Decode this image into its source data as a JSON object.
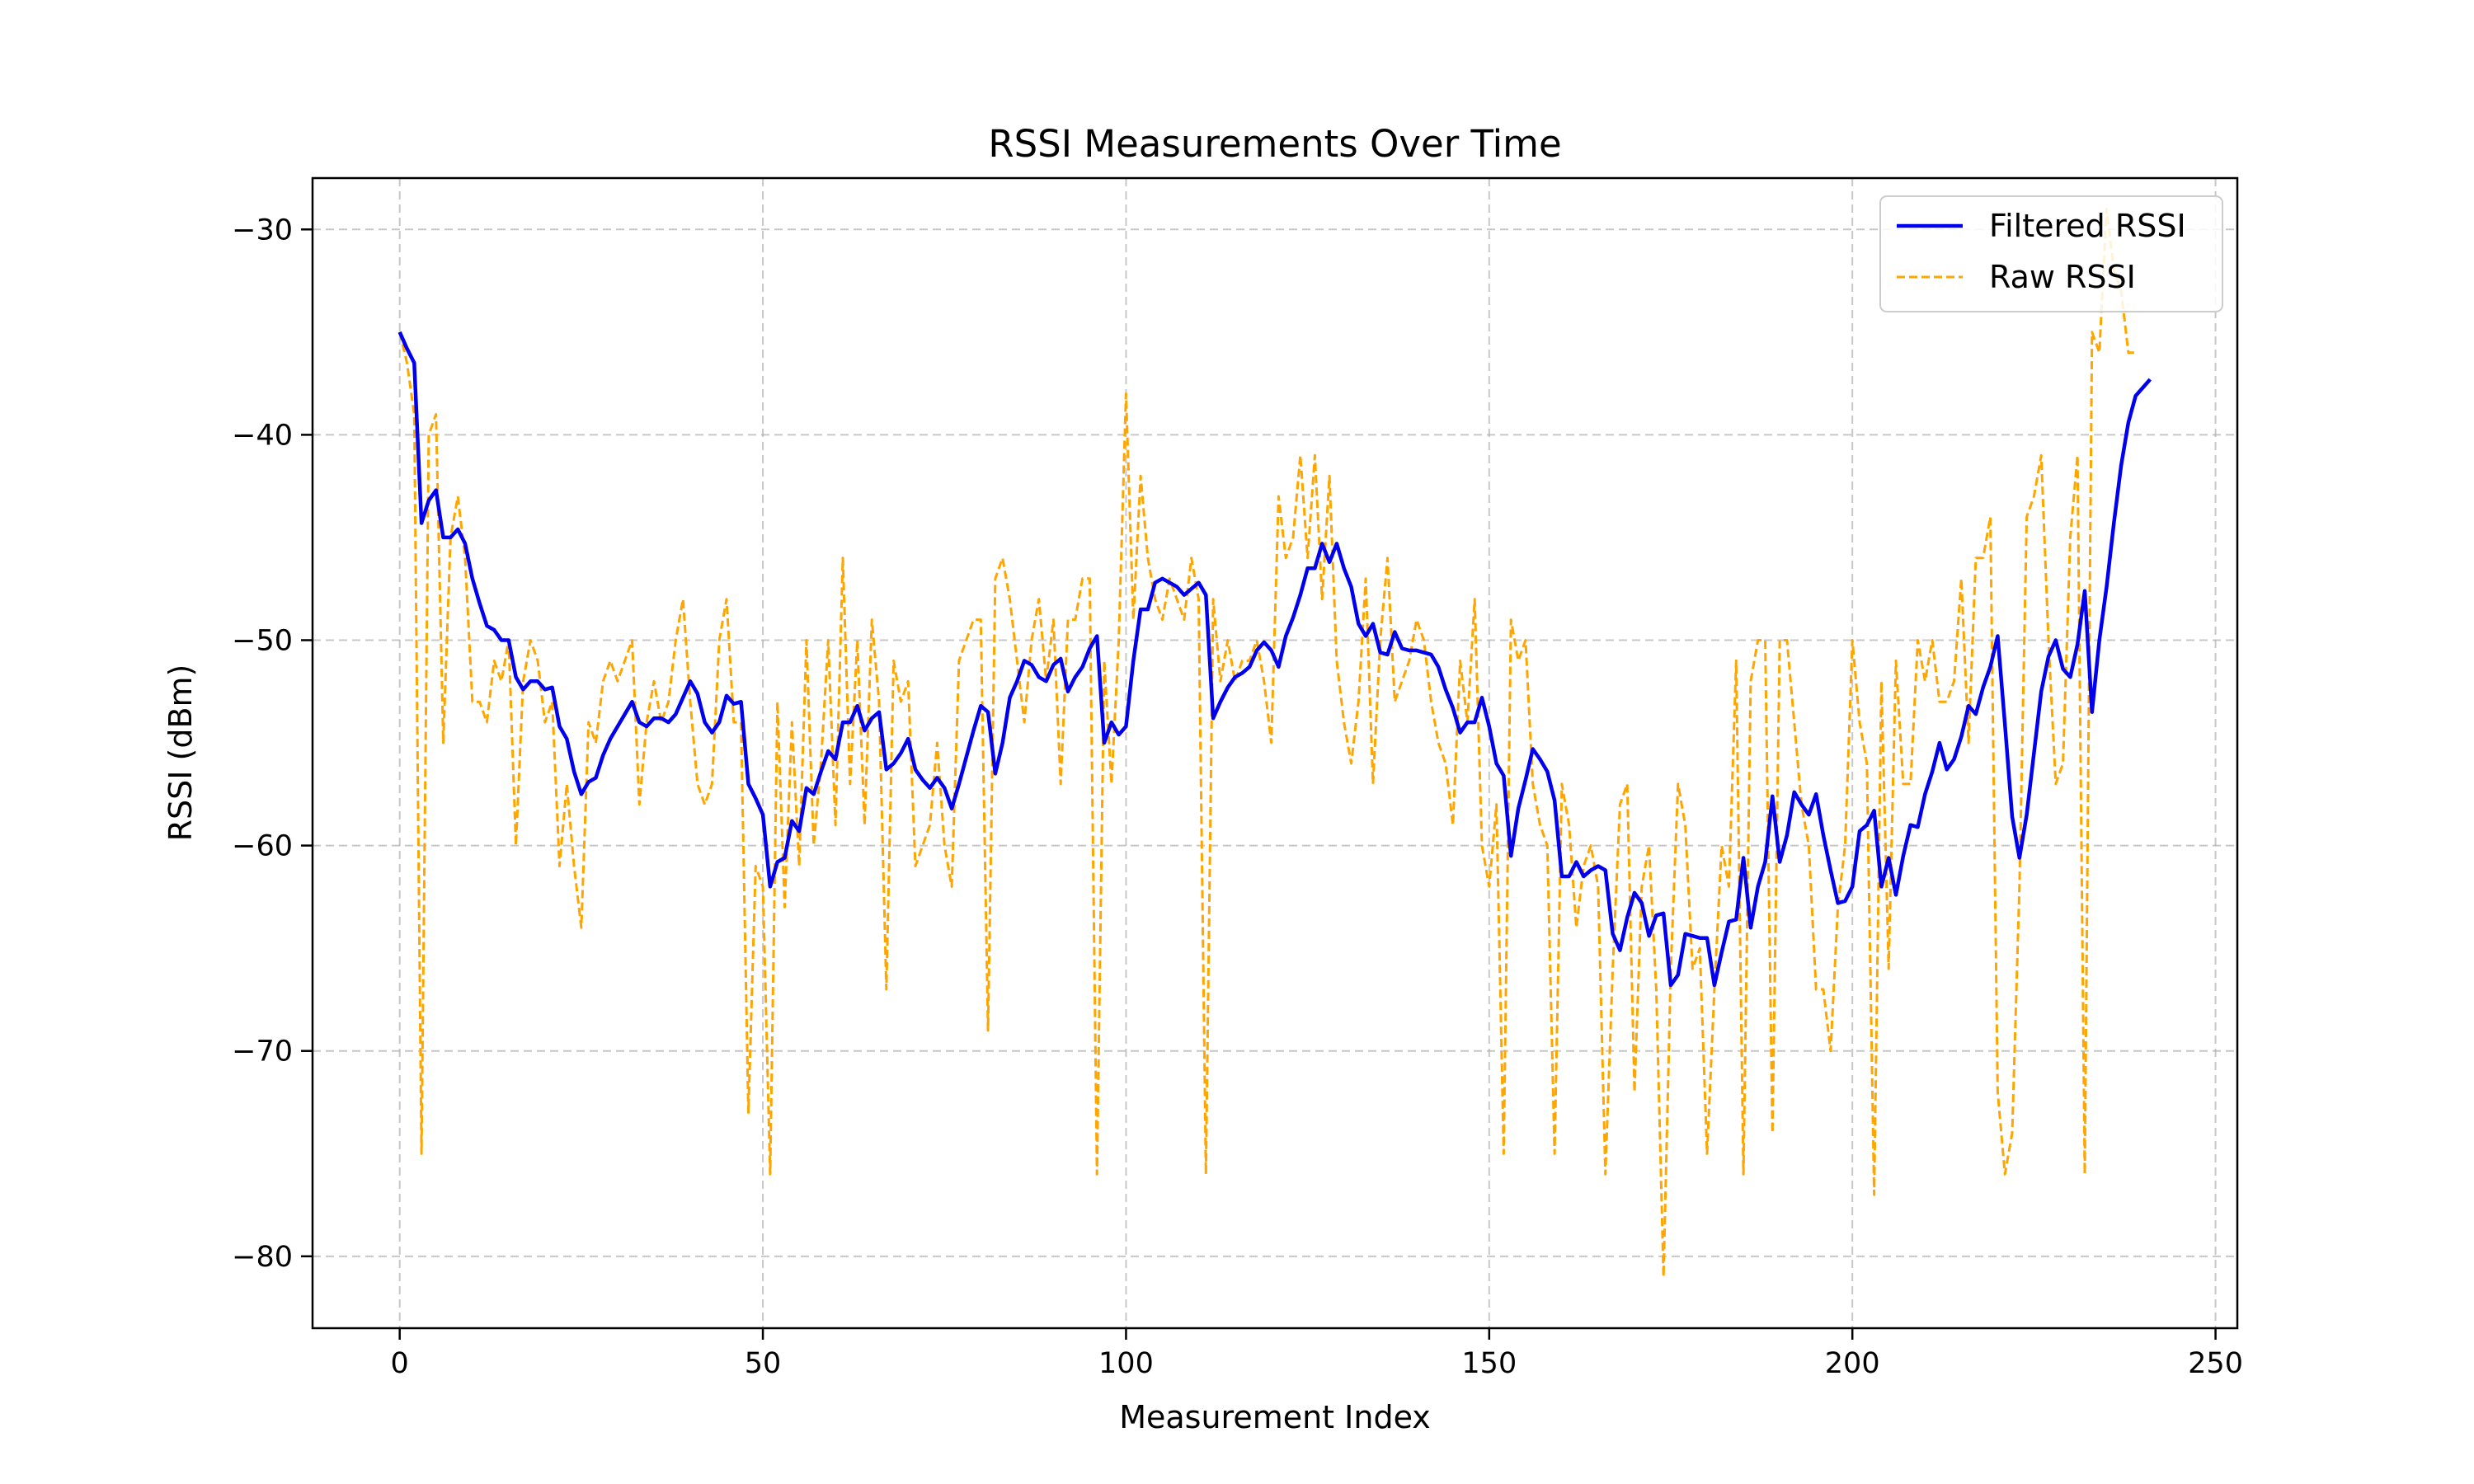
{
  "chart_data": {
    "type": "line",
    "title": "RSSI Measurements Over Time",
    "xlabel": "Measurement Index",
    "ylabel": "RSSI (dBm)",
    "xlim": [
      -12,
      253
    ],
    "ylim": [
      -83.5,
      -27.5
    ],
    "xticks": [
      0,
      50,
      100,
      150,
      200,
      250
    ],
    "yticks": [
      -30,
      -40,
      -50,
      -60,
      -70,
      -80
    ],
    "xtick_labels": [
      "0",
      "50",
      "100",
      "150",
      "200",
      "250"
    ],
    "ytick_labels": [
      "−30",
      "−40",
      "−50",
      "−60",
      "−70",
      "−80"
    ],
    "grid": true,
    "legend_position": "top-right",
    "series": [
      {
        "name": "Filtered RSSI",
        "color": "#0000ee",
        "style": "solid",
        "values": [
          -35,
          -35.8,
          -36.5,
          -44.3,
          -43.2,
          -42.7,
          -45,
          -45,
          -44.6,
          -45.3,
          -47,
          -48.2,
          -49.3,
          -49.5,
          -50,
          -50,
          -51.8,
          -52.4,
          -52,
          -52,
          -52.4,
          -52.3,
          -54.2,
          -54.8,
          -56.4,
          -57.5,
          -56.9,
          -56.7,
          -55.6,
          -54.8,
          -54.2,
          -53.6,
          -53,
          -54,
          -54.2,
          -53.8,
          -53.8,
          -54,
          -53.6,
          -52.8,
          -52,
          -52.6,
          -54,
          -54.5,
          -54,
          -52.7,
          -53.1,
          -53,
          -57,
          -57.7,
          -58.5,
          -62,
          -60.8,
          -60.6,
          -58.8,
          -59.3,
          -57.2,
          -57.5,
          -56.4,
          -55.4,
          -55.8,
          -54,
          -54,
          -53.2,
          -54.4,
          -53.8,
          -53.5,
          -56.3,
          -56,
          -55.5,
          -54.8,
          -56.3,
          -56.8,
          -57.2,
          -56.7,
          -57.2,
          -58.2,
          -57,
          -55.7,
          -54.4,
          -53.2,
          -53.5,
          -56.5,
          -55,
          -52.8,
          -52,
          -51,
          -51.2,
          -51.8,
          -52,
          -51.2,
          -50.9,
          -52.5,
          -51.8,
          -51.3,
          -50.4,
          -49.8,
          -55,
          -54,
          -54.6,
          -54.2,
          -51,
          -48.5,
          -48.5,
          -47.2,
          -47,
          -47.2,
          -47.4,
          -47.8,
          -47.5,
          -47.2,
          -47.8,
          -53.8,
          -53,
          -52.3,
          -51.8,
          -51.6,
          -51.3,
          -50.5,
          -50.1,
          -50.5,
          -51.3,
          -49.8,
          -48.9,
          -47.8,
          -46.5,
          -46.5,
          -45.3,
          -46.2,
          -45.3,
          -46.5,
          -47.4,
          -49.2,
          -49.8,
          -49.2,
          -50.6,
          -50.7,
          -49.6,
          -50.4,
          -50.5,
          -50.5,
          -50.6,
          -50.7,
          -51.3,
          -52.4,
          -53.3,
          -54.5,
          -54,
          -54,
          -52.8,
          -54.2,
          -56,
          -56.6,
          -60.5,
          -58.2,
          -56.8,
          -55.3,
          -55.8,
          -56.4,
          -57.8,
          -61.5,
          -61.5,
          -60.8,
          -61.5,
          -61.2,
          -61,
          -61.2,
          -64.3,
          -65.1,
          -63.5,
          -62.3,
          -62.8,
          -64.4,
          -63.4,
          -63.3,
          -66.8,
          -66.3,
          -64.3,
          -64.4,
          -64.5,
          -64.5,
          -66.8,
          -65.2,
          -63.7,
          -63.6,
          -60.6,
          -64,
          -62,
          -60.8,
          -57.6,
          -60.8,
          -59.5,
          -57.4,
          -58,
          -58.5,
          -57.5,
          -59.5,
          -61.2,
          -62.8,
          -62.7,
          -62,
          -59.3,
          -59,
          -58.3,
          -62,
          -60.6,
          -62.4,
          -60.5,
          -59,
          -59.1,
          -57.5,
          -56.4,
          -55,
          -56.3,
          -55.8,
          -54.7,
          -53.2,
          -53.6,
          -52.3,
          -51.3,
          -49.8,
          -54.1,
          -58.6,
          -60.6,
          -58.5,
          -55.5,
          -52.5,
          -50.8,
          -50,
          -51.4,
          -51.8,
          -50.2,
          -47.6,
          -53.5,
          -50,
          -47.4,
          -44.3,
          -41.5,
          -39.4,
          -38.1,
          -37.7,
          -37.3
        ]
      },
      {
        "name": "Raw RSSI",
        "color": "#ffa500",
        "style": "dashed",
        "values": [
          -35,
          -36.5,
          -39,
          -75,
          -40,
          -39,
          -55,
          -45,
          -43,
          -46,
          -53,
          -53,
          -54,
          -51,
          -52,
          -50,
          -60,
          -52,
          -50,
          -51,
          -54,
          -53,
          -61,
          -57,
          -61,
          -64,
          -54,
          -55,
          -52,
          -51,
          -52,
          -51,
          -50,
          -58,
          -54,
          -52,
          -54,
          -53,
          -50,
          -48,
          -53,
          -57,
          -58,
          -57,
          -50,
          -48,
          -54,
          -54,
          -73,
          -61,
          -62,
          -76,
          -53,
          -63,
          -54,
          -61,
          -50,
          -60,
          -56,
          -50,
          -59,
          -46,
          -57,
          -50,
          -59,
          -49,
          -53,
          -67,
          -51,
          -53,
          -52,
          -61,
          -60,
          -59,
          -55,
          -60,
          -62,
          -51,
          -50,
          -49,
          -49,
          -69,
          -47,
          -46,
          -48,
          -51,
          -54,
          -50,
          -48,
          -52,
          -49,
          -57,
          -49,
          -49,
          -47,
          -47,
          -76,
          -51,
          -57,
          -50,
          -38,
          -49,
          -42,
          -46,
          -48,
          -49,
          -47,
          -48,
          -49,
          -46,
          -48,
          -76,
          -48,
          -52,
          -50,
          -52,
          -51,
          -51,
          -50,
          -52,
          -55,
          -43,
          -46,
          -45,
          -41,
          -46,
          -41,
          -48,
          -42,
          -51,
          -54,
          -56,
          -53,
          -47,
          -57,
          -50,
          -46,
          -53,
          -52,
          -51,
          -49,
          -50,
          -53,
          -55,
          -56,
          -59,
          -51,
          -54,
          -48,
          -60,
          -62,
          -58,
          -75,
          -49,
          -51,
          -50,
          -57,
          -59,
          -60,
          -75,
          -57,
          -59,
          -64,
          -61,
          -60,
          -62,
          -76,
          -66,
          -58,
          -57,
          -72,
          -62,
          -60,
          -67,
          -81,
          -66,
          -57,
          -59,
          -66,
          -65,
          -75,
          -67,
          -60,
          -62,
          -51,
          -76,
          -52,
          -50,
          -50,
          -74,
          -50,
          -50,
          -54,
          -58,
          -60,
          -67,
          -67,
          -70,
          -63,
          -60,
          -50,
          -54,
          -56,
          -77,
          -52,
          -66,
          -51,
          -57,
          -57,
          -50,
          -52,
          -50,
          -53,
          -53,
          -52,
          -47,
          -55,
          -46,
          -46,
          -44,
          -72,
          -76,
          -74,
          -62,
          -44,
          -43,
          -41,
          -50,
          -57,
          -56,
          -45,
          -41,
          -76,
          -35,
          -36,
          -29,
          -32,
          -33,
          -36,
          -36
        ]
      }
    ]
  }
}
